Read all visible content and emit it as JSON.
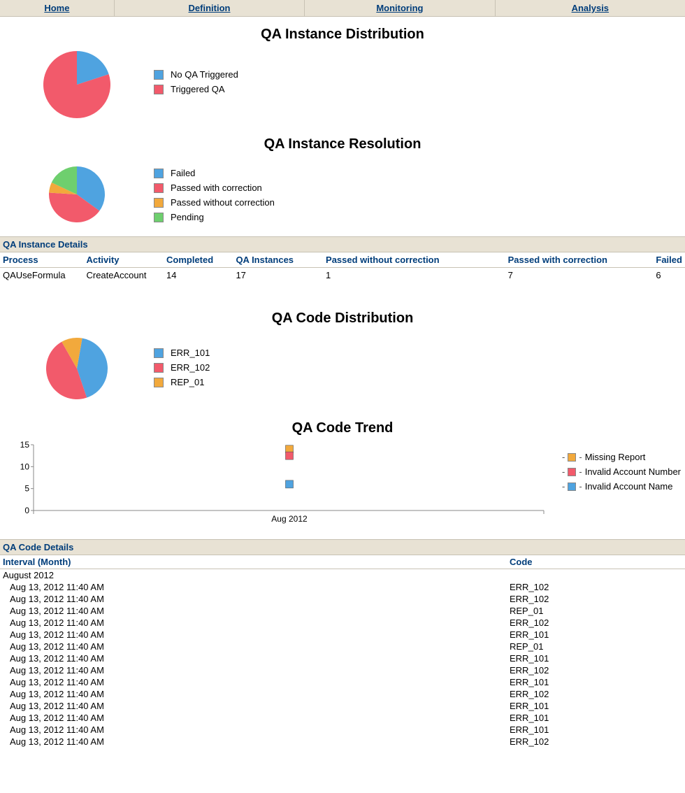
{
  "colors": {
    "blue": "#4fa3e0",
    "red": "#f25a6b",
    "orange": "#f2a93c",
    "green": "#6ecf6e",
    "axis": "#888888",
    "nav_bg": "#e8e2d4",
    "nav_text": "#003d7a"
  },
  "nav": [
    {
      "label": "Home"
    },
    {
      "label": "Definition"
    },
    {
      "label": "Monitoring"
    },
    {
      "label": "Analysis"
    }
  ],
  "chart1": {
    "title": "QA Instance Distribution",
    "type": "pie",
    "radius": 48,
    "slices": [
      {
        "label": "No QA Triggered",
        "value": 20,
        "color": "#4fa3e0"
      },
      {
        "label": "Triggered QA",
        "value": 80,
        "color": "#f25a6b"
      }
    ]
  },
  "chart2": {
    "title": "QA Instance Resolution",
    "type": "pie",
    "radius": 40,
    "slices": [
      {
        "label": "Failed",
        "value": 35,
        "color": "#4fa3e0"
      },
      {
        "label": "Passed with correction",
        "value": 41,
        "color": "#f25a6b"
      },
      {
        "label": "Passed without correction",
        "value": 6,
        "color": "#f2a93c"
      },
      {
        "label": "Pending",
        "value": 18,
        "color": "#6ecf6e"
      }
    ]
  },
  "instance_details": {
    "header": "QA Instance Details",
    "columns": [
      "Process",
      "Activity",
      "Completed",
      "QA Instances",
      "Passed without correction",
      "Passed with correction",
      "Failed"
    ],
    "col_widths": [
      "120px",
      "115px",
      "100px",
      "130px",
      "265px",
      "215px",
      "35px"
    ],
    "rows": [
      [
        "QAUseFormula",
        "CreateAccount",
        "14",
        "17",
        "1",
        "7",
        "6"
      ]
    ]
  },
  "chart3": {
    "title": "QA Code Distribution",
    "type": "pie",
    "radius": 44,
    "slices": [
      {
        "label": "ERR_101",
        "value": 42,
        "color": "#4fa3e0"
      },
      {
        "label": "ERR_102",
        "value": 47,
        "color": "#f25a6b"
      },
      {
        "label": "REP_01",
        "value": 11,
        "color": "#f2a93c"
      }
    ]
  },
  "chart4": {
    "title": "QA Code Trend",
    "type": "trend",
    "ylim": [
      0,
      15
    ],
    "ytick_step": 5,
    "xlabel": "Aug 2012",
    "marker_size": 11,
    "series": [
      {
        "label": "Missing Report",
        "color": "#f2a93c",
        "value": 14
      },
      {
        "label": "Invalid Account Number",
        "color": "#f25a6b",
        "value": 12.5
      },
      {
        "label": "Invalid Account Name",
        "color": "#4fa3e0",
        "value": 6
      }
    ]
  },
  "code_details": {
    "header": "QA Code Details",
    "columns": [
      "Interval (Month)",
      "Code"
    ],
    "col_widths": [
      "725px",
      "255px"
    ],
    "group": "August 2012",
    "rows": [
      [
        "Aug 13, 2012 11:40 AM",
        "ERR_102"
      ],
      [
        "Aug 13, 2012 11:40 AM",
        "ERR_102"
      ],
      [
        "Aug 13, 2012 11:40 AM",
        "REP_01"
      ],
      [
        "Aug 13, 2012 11:40 AM",
        "ERR_102"
      ],
      [
        "Aug 13, 2012 11:40 AM",
        "ERR_101"
      ],
      [
        "Aug 13, 2012 11:40 AM",
        "REP_01"
      ],
      [
        "Aug 13, 2012 11:40 AM",
        "ERR_101"
      ],
      [
        "Aug 13, 2012 11:40 AM",
        "ERR_102"
      ],
      [
        "Aug 13, 2012 11:40 AM",
        "ERR_101"
      ],
      [
        "Aug 13, 2012 11:40 AM",
        "ERR_102"
      ],
      [
        "Aug 13, 2012 11:40 AM",
        "ERR_101"
      ],
      [
        "Aug 13, 2012 11:40 AM",
        "ERR_101"
      ],
      [
        "Aug 13, 2012 11:40 AM",
        "ERR_101"
      ],
      [
        "Aug 13, 2012 11:40 AM",
        "ERR_102"
      ]
    ]
  }
}
